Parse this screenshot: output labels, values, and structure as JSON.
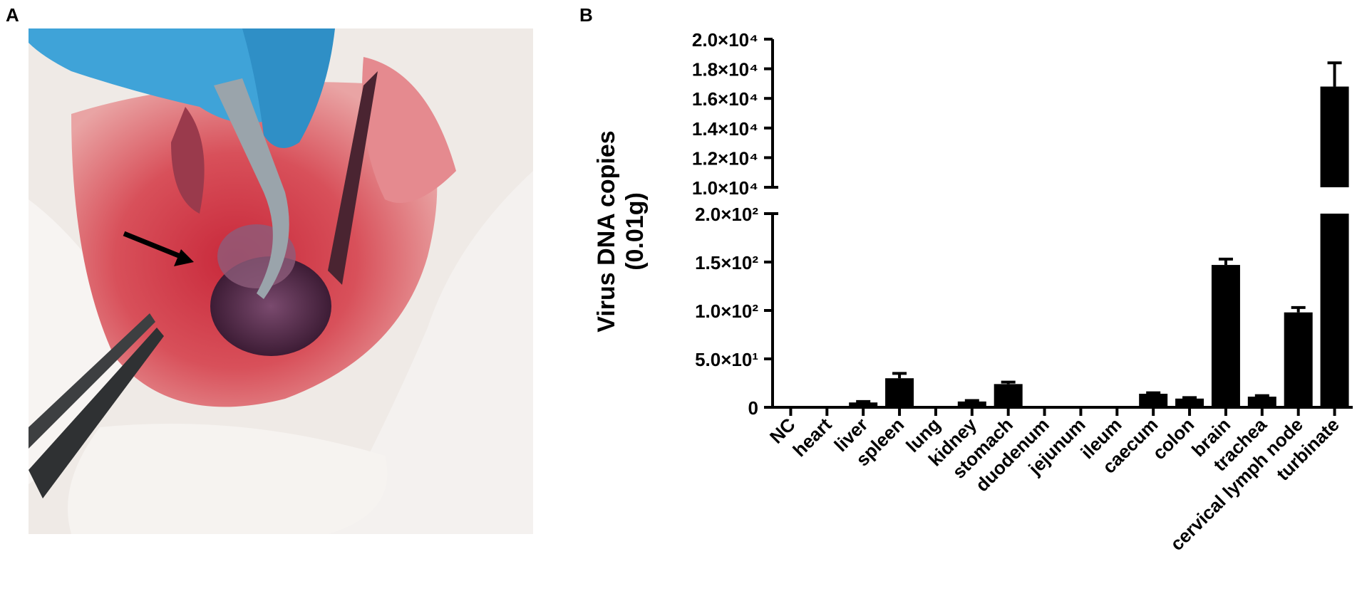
{
  "panels": {
    "a_label": "A",
    "b_label": "B"
  },
  "photo": {
    "description_icon": "dissection-photo",
    "arrow_icon": "arrow-pointer-icon"
  },
  "chart_data": {
    "type": "bar",
    "title": "",
    "xlabel": "",
    "ylabel": "Virus DNA copies",
    "ylabel_line2": "(0.01g)",
    "broken_axis": true,
    "lower_segment": {
      "ylim": [
        0,
        200
      ],
      "ticks": [
        "0",
        "5.0×10¹",
        "1.0×10²",
        "1.5×10²",
        "2.0×10²"
      ]
    },
    "upper_segment": {
      "ylim": [
        10000,
        20000
      ],
      "ticks": [
        "1.0×10⁴",
        "1.2×10⁴",
        "1.4×10⁴",
        "1.6×10⁴",
        "1.8×10⁴",
        "2.0×10⁴"
      ]
    },
    "categories": [
      "NC",
      "heart",
      "liver",
      "spleen",
      "lung",
      "kidney",
      "stomach",
      "duodenum",
      "jejunum",
      "ileum",
      "caecum",
      "colon",
      "brain",
      "trachea",
      "cervical lymph node",
      "turbinate"
    ],
    "values": [
      0,
      0,
      5,
      30,
      0,
      6,
      24,
      0,
      0,
      0,
      14,
      9,
      147,
      11,
      98,
      16800
    ],
    "errors": [
      0,
      0,
      1,
      5,
      0,
      1,
      2,
      0,
      0,
      0,
      1,
      1,
      6,
      1,
      5,
      1600
    ],
    "bar_color": "#000000",
    "grid": false,
    "legend": "none"
  }
}
